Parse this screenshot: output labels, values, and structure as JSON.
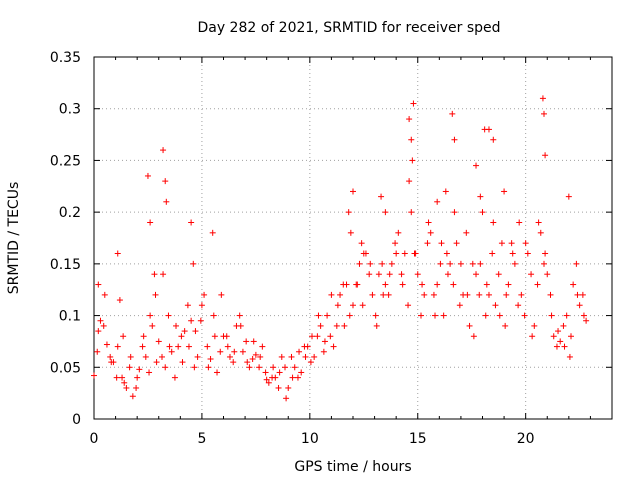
{
  "chart_data": {
    "type": "scatter",
    "title": "Day 282 of 2021, SRMTID for receiver sped",
    "xlabel": "GPS time / hours",
    "ylabel": "SRMTID / TECUs",
    "xlim": [
      0,
      24
    ],
    "ylim": [
      0,
      0.35
    ],
    "xticks": [
      0,
      5,
      10,
      15,
      20
    ],
    "xtick_labels": [
      "0",
      "5",
      "10",
      "15",
      "20"
    ],
    "yticks": [
      0,
      0.05,
      0.1,
      0.15,
      0.2,
      0.25,
      0.3,
      0.35
    ],
    "ytick_labels": [
      "0",
      "0.05",
      "0.1",
      "0.15",
      "0.2",
      "0.25",
      "0.3",
      "0.35"
    ],
    "grid": true,
    "marker": "+",
    "color": "#ff0000",
    "series": [
      {
        "name": "SRMTID",
        "x": [
          0.0,
          0.3,
          0.6,
          0.9,
          1.2,
          1.5,
          1.8,
          2.1,
          2.4,
          2.7,
          3.0,
          3.3,
          3.6,
          3.9,
          4.2,
          4.5,
          4.8,
          5.1,
          5.4,
          5.7,
          6.0,
          6.3,
          6.6,
          6.9,
          7.2,
          7.5,
          7.8,
          8.1,
          8.4,
          8.7,
          9.0,
          9.3,
          9.6,
          9.9,
          10.2,
          10.5,
          10.8,
          11.1,
          11.4,
          11.7,
          12.0,
          12.3,
          12.6,
          12.9,
          13.2,
          13.5,
          13.8,
          14.1,
          14.4,
          14.7,
          15.0,
          15.3,
          15.6,
          15.9,
          16.2,
          16.5,
          16.8,
          17.1,
          17.4,
          17.7,
          18.0,
          18.3,
          18.6,
          18.9,
          19.2,
          19.5,
          19.8,
          20.1,
          20.4,
          20.7,
          21.0,
          21.3,
          21.6,
          21.9,
          22.2,
          22.5,
          22.8,
          0.15,
          0.45,
          0.75,
          1.05,
          1.35,
          1.65,
          1.95,
          2.25,
          2.55,
          2.85,
          3.15,
          3.45,
          3.75,
          4.05,
          4.35,
          4.65,
          4.95,
          5.25,
          5.55,
          5.85,
          6.15,
          6.45,
          6.75,
          7.05,
          7.35,
          7.65,
          7.95,
          8.25,
          8.55,
          8.85,
          9.15,
          9.45,
          9.75,
          10.05,
          10.35,
          10.65,
          10.95,
          11.25,
          11.55,
          11.85,
          12.15,
          12.45,
          12.75,
          13.05,
          13.35,
          13.65,
          13.95,
          14.25,
          14.55,
          14.85,
          15.15,
          15.45,
          15.75,
          16.05,
          16.35,
          16.65,
          16.95,
          17.25,
          17.55,
          17.85,
          18.15,
          18.45,
          18.75,
          19.05,
          19.35,
          19.65,
          19.95,
          20.25,
          20.55,
          20.85,
          21.15,
          21.45,
          21.75,
          22.05,
          22.35,
          22.65,
          0.2,
          0.5,
          0.8,
          1.1,
          1.4,
          1.7,
          2.0,
          2.3,
          2.6,
          2.9,
          3.2,
          3.5,
          3.8,
          4.1,
          4.4,
          4.7,
          5.0,
          5.3,
          5.6,
          5.9,
          6.2,
          6.5,
          6.8,
          7.1,
          7.4,
          7.7,
          8.0,
          8.3,
          8.6,
          8.9,
          9.2,
          9.5,
          9.8,
          10.1,
          10.4,
          10.7,
          11.0,
          11.3,
          11.6,
          11.9,
          12.2,
          12.5,
          12.8,
          13.1,
          13.4,
          13.7,
          14.0,
          14.3,
          14.6,
          14.9,
          15.2,
          15.5,
          15.8,
          16.1,
          16.4,
          16.7,
          17.0,
          17.3,
          17.6,
          17.9,
          18.2,
          18.5,
          18.8,
          19.1,
          19.4,
          19.7,
          20.0,
          20.3,
          20.6,
          20.9,
          21.2,
          21.5,
          21.8,
          22.1,
          22.4,
          22.7,
          2.5,
          2.6,
          2.8,
          3.2,
          3.3,
          3.35,
          4.5,
          4.6,
          14.6,
          14.7,
          14.75,
          14.8,
          16.6,
          16.7,
          17.7,
          17.9,
          18.1,
          18.3,
          18.5,
          20.8,
          20.85,
          20.9,
          13.3,
          13.5,
          12.0,
          5.5,
          19.0,
          22.0,
          1.1,
          0.2,
          1.3,
          11.8,
          12.4,
          15.9,
          16.3
        ],
        "y": [
          0.042,
          0.095,
          0.072,
          0.055,
          0.115,
          0.03,
          0.022,
          0.048,
          0.06,
          0.09,
          0.075,
          0.05,
          0.065,
          0.07,
          0.085,
          0.095,
          0.06,
          0.12,
          0.058,
          0.045,
          0.08,
          0.06,
          0.09,
          0.065,
          0.05,
          0.062,
          0.07,
          0.035,
          0.04,
          0.06,
          0.03,
          0.05,
          0.045,
          0.07,
          0.06,
          0.09,
          0.1,
          0.07,
          0.12,
          0.13,
          0.11,
          0.15,
          0.16,
          0.12,
          0.14,
          0.13,
          0.15,
          0.18,
          0.16,
          0.2,
          0.14,
          0.12,
          0.18,
          0.13,
          0.1,
          0.15,
          0.17,
          0.12,
          0.09,
          0.14,
          0.2,
          0.12,
          0.11,
          0.17,
          0.13,
          0.15,
          0.12,
          0.16,
          0.09,
          0.18,
          0.14,
          0.08,
          0.075,
          0.1,
          0.13,
          0.11,
          0.095,
          0.065,
          0.09,
          0.06,
          0.04,
          0.08,
          0.05,
          0.03,
          0.07,
          0.045,
          0.12,
          0.06,
          0.1,
          0.04,
          0.08,
          0.11,
          0.05,
          0.095,
          0.07,
          0.1,
          0.065,
          0.08,
          0.055,
          0.1,
          0.075,
          0.058,
          0.05,
          0.045,
          0.04,
          0.03,
          0.05,
          0.06,
          0.04,
          0.07,
          0.055,
          0.08,
          0.065,
          0.08,
          0.09,
          0.13,
          0.1,
          0.13,
          0.11,
          0.14,
          0.1,
          0.15,
          0.12,
          0.17,
          0.14,
          0.11,
          0.16,
          0.1,
          0.17,
          0.12,
          0.15,
          0.16,
          0.13,
          0.11,
          0.18,
          0.15,
          0.12,
          0.1,
          0.16,
          0.14,
          0.09,
          0.17,
          0.11,
          0.1,
          0.14,
          0.13,
          0.15,
          0.12,
          0.07,
          0.09,
          0.06,
          0.15,
          0.12,
          0.085,
          0.12,
          0.055,
          0.07,
          0.035,
          0.06,
          0.04,
          0.08,
          0.1,
          0.055,
          0.14,
          0.07,
          0.09,
          0.055,
          0.07,
          0.085,
          0.11,
          0.05,
          0.08,
          0.12,
          0.07,
          0.065,
          0.09,
          0.055,
          0.075,
          0.06,
          0.038,
          0.05,
          0.045,
          0.02,
          0.04,
          0.065,
          0.06,
          0.08,
          0.1,
          0.075,
          0.12,
          0.11,
          0.09,
          0.18,
          0.13,
          0.16,
          0.15,
          0.09,
          0.12,
          0.14,
          0.16,
          0.13,
          0.23,
          0.16,
          0.13,
          0.19,
          0.1,
          0.17,
          0.14,
          0.2,
          0.15,
          0.12,
          0.08,
          0.15,
          0.13,
          0.19,
          0.1,
          0.12,
          0.16,
          0.19,
          0.17,
          0.08,
          0.19,
          0.16,
          0.1,
          0.085,
          0.07,
          0.08,
          0.12,
          0.1,
          0.235,
          0.19,
          0.14,
          0.26,
          0.23,
          0.21,
          0.19,
          0.15,
          0.29,
          0.27,
          0.25,
          0.305,
          0.295,
          0.27,
          0.245,
          0.215,
          0.28,
          0.28,
          0.27,
          0.31,
          0.295,
          0.255,
          0.215,
          0.2,
          0.22,
          0.18,
          0.22,
          0.215,
          0.16,
          0.13,
          0.04,
          0.2,
          0.17,
          0.21,
          0.22
        ]
      }
    ]
  }
}
